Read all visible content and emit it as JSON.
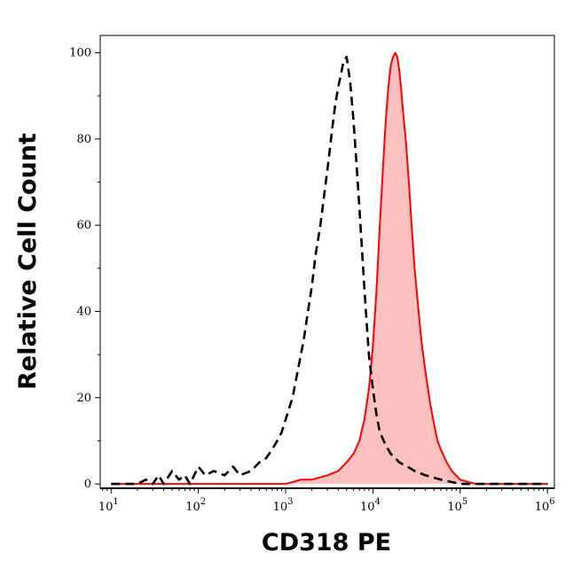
{
  "chart_data": {
    "type": "area",
    "xlabel": "CD318 PE",
    "ylabel": "Relative Cell Count",
    "x_scale": "log",
    "xlim": [
      7.5,
      1200000
    ],
    "ylim": [
      -1,
      104
    ],
    "x_ticks": [
      {
        "value": 10,
        "base": "10",
        "exp": "1"
      },
      {
        "value": 100,
        "base": "10",
        "exp": "2"
      },
      {
        "value": 1000,
        "base": "10",
        "exp": "3"
      },
      {
        "value": 10000,
        "base": "10",
        "exp": "4"
      },
      {
        "value": 100000,
        "base": "10",
        "exp": "5"
      },
      {
        "value": 1000000,
        "base": "10",
        "exp": "6"
      }
    ],
    "y_ticks": [
      0,
      20,
      40,
      60,
      80,
      100
    ],
    "series": [
      {
        "style": "dashed",
        "color": "#000000",
        "points": [
          [
            10,
            0
          ],
          [
            20,
            0
          ],
          [
            25,
            1
          ],
          [
            30,
            0
          ],
          [
            35,
            2
          ],
          [
            40,
            0
          ],
          [
            50,
            3
          ],
          [
            60,
            1
          ],
          [
            70,
            2
          ],
          [
            80,
            0
          ],
          [
            100,
            4
          ],
          [
            120,
            2
          ],
          [
            150,
            3
          ],
          [
            200,
            2
          ],
          [
            250,
            4
          ],
          [
            300,
            2
          ],
          [
            400,
            3
          ],
          [
            500,
            5
          ],
          [
            600,
            6
          ],
          [
            700,
            8
          ],
          [
            800,
            10
          ],
          [
            900,
            12
          ],
          [
            1000,
            15
          ],
          [
            1200,
            20
          ],
          [
            1400,
            27
          ],
          [
            1600,
            33
          ],
          [
            1800,
            40
          ],
          [
            2000,
            46
          ],
          [
            2200,
            53
          ],
          [
            2500,
            60
          ],
          [
            2800,
            68
          ],
          [
            3100,
            75
          ],
          [
            3400,
            82
          ],
          [
            3700,
            88
          ],
          [
            4000,
            92
          ],
          [
            4300,
            95
          ],
          [
            4600,
            98
          ],
          [
            5000,
            99
          ],
          [
            5500,
            93
          ],
          [
            6000,
            84
          ],
          [
            6500,
            74
          ],
          [
            7000,
            64
          ],
          [
            7500,
            54
          ],
          [
            8000,
            45
          ],
          [
            8500,
            37
          ],
          [
            9000,
            30
          ],
          [
            10000,
            22
          ],
          [
            11000,
            16
          ],
          [
            12000,
            12
          ],
          [
            14000,
            9
          ],
          [
            16000,
            7
          ],
          [
            18000,
            6
          ],
          [
            20000,
            5
          ],
          [
            25000,
            4
          ],
          [
            30000,
            3
          ],
          [
            40000,
            2
          ],
          [
            60000,
            1
          ],
          [
            100000,
            0
          ],
          [
            1000000,
            0
          ]
        ]
      },
      {
        "style": "solid-filled",
        "color": "#ff0000",
        "fill": "#ffc0c0",
        "points": [
          [
            10,
            0
          ],
          [
            200,
            0
          ],
          [
            400,
            0
          ],
          [
            700,
            0
          ],
          [
            1000,
            0
          ],
          [
            1500,
            1
          ],
          [
            2000,
            1
          ],
          [
            3000,
            2
          ],
          [
            4000,
            3
          ],
          [
            5000,
            5
          ],
          [
            6000,
            7
          ],
          [
            7000,
            10
          ],
          [
            8000,
            15
          ],
          [
            9000,
            22
          ],
          [
            10000,
            32
          ],
          [
            11000,
            45
          ],
          [
            12000,
            60
          ],
          [
            13000,
            73
          ],
          [
            14000,
            84
          ],
          [
            15000,
            92
          ],
          [
            16000,
            97
          ],
          [
            17000,
            99
          ],
          [
            18000,
            100
          ],
          [
            19000,
            99
          ],
          [
            20000,
            96
          ],
          [
            21000,
            92
          ],
          [
            22000,
            87
          ],
          [
            24000,
            79
          ],
          [
            26000,
            69
          ],
          [
            28000,
            59
          ],
          [
            30000,
            50
          ],
          [
            33000,
            41
          ],
          [
            36000,
            33
          ],
          [
            40000,
            26
          ],
          [
            45000,
            19
          ],
          [
            50000,
            14
          ],
          [
            55000,
            10
          ],
          [
            60000,
            8
          ],
          [
            70000,
            5
          ],
          [
            80000,
            3
          ],
          [
            100000,
            1
          ],
          [
            150000,
            0
          ],
          [
            300000,
            0
          ],
          [
            1000000,
            0
          ]
        ]
      }
    ]
  }
}
